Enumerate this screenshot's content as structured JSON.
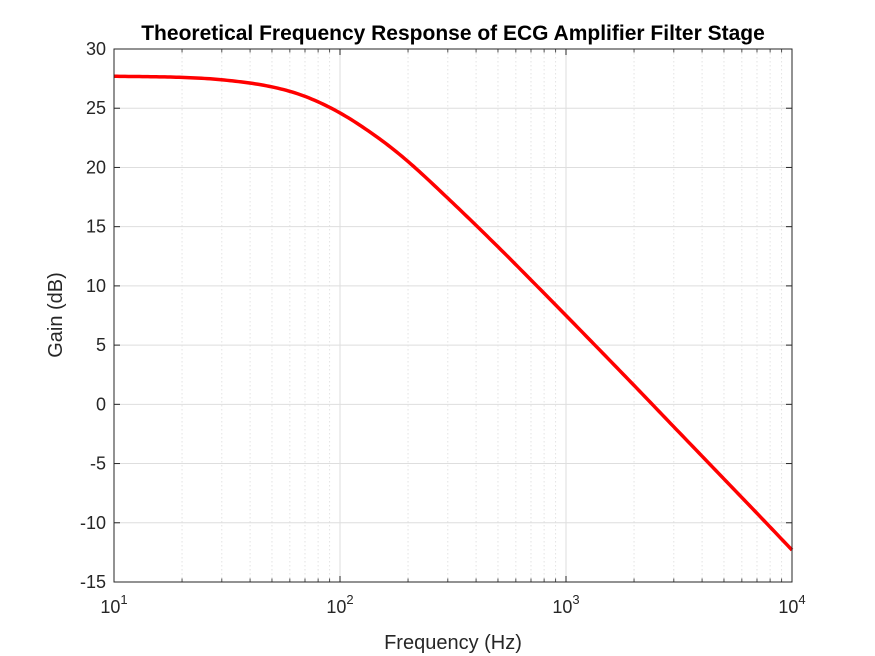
{
  "chart_data": {
    "type": "line",
    "title": "Theoretical Frequency Response of ECG Amplifier Filter Stage",
    "xlabel": "Frequency (Hz)",
    "ylabel": "Gain (dB)",
    "xscale": "log",
    "xlim": [
      10,
      10000
    ],
    "ylim": [
      -15,
      30
    ],
    "grid": true,
    "x_ticks": [
      {
        "base": "10",
        "exp": "1",
        "value": 10
      },
      {
        "base": "10",
        "exp": "2",
        "value": 100
      },
      {
        "base": "10",
        "exp": "3",
        "value": 1000
      },
      {
        "base": "10",
        "exp": "4",
        "value": 10000
      }
    ],
    "y_ticks": [
      "-15",
      "-10",
      "-5",
      "0",
      "5",
      "10",
      "15",
      "20",
      "25",
      "30"
    ],
    "series": [
      {
        "color": "#ff0000",
        "x": [
          10,
          20,
          30,
          50,
          70,
          100,
          150,
          200,
          300,
          500,
          700,
          1000,
          2000,
          3000,
          5000,
          7000,
          10000
        ],
        "y": [
          27.7,
          27.6,
          27.4,
          26.8,
          26.0,
          24.6,
          22.4,
          20.5,
          17.4,
          13.3,
          10.5,
          7.5,
          1.6,
          -1.9,
          -6.3,
          -9.2,
          -12.3
        ]
      }
    ]
  }
}
